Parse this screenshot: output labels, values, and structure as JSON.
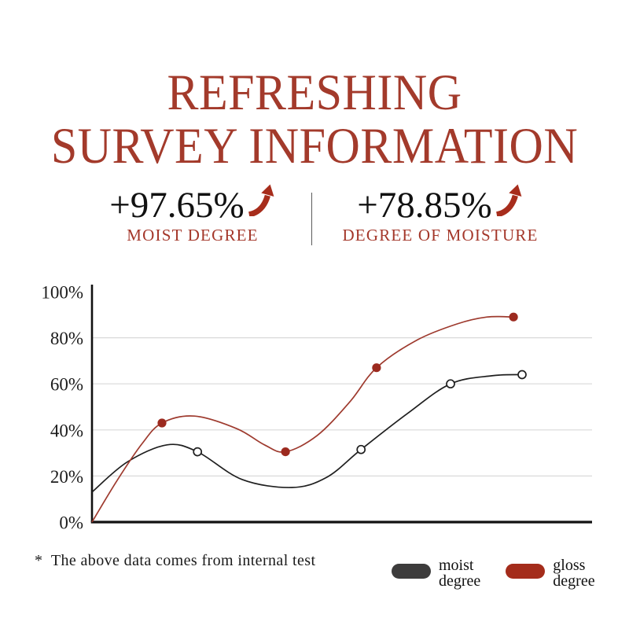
{
  "title": {
    "line1": "REFRESHING",
    "line2": "SURVEY INFORMATION"
  },
  "stats": [
    {
      "value": "+97.65%",
      "label": "MOIST DEGREE"
    },
    {
      "value": "+78.85%",
      "label": "DEGREE OF MOISTURE"
    }
  ],
  "footnote": "*  The above data comes from internal test",
  "legend": [
    {
      "line1": "moist",
      "line2": "degree",
      "color": "#3d3c3c"
    },
    {
      "line1": "gloss",
      "line2": "degree",
      "color": "#a42c1b"
    }
  ],
  "colors": {
    "accent-red": "#a33a2b",
    "stat-label-red": "#a4372a",
    "arrow-red": "#a72d1c",
    "text-dark": "#141414"
  },
  "icons": {
    "stat_arrow": "up-trend-arrow"
  },
  "chart_data": {
    "type": "line",
    "title": "",
    "xlabel": "",
    "ylabel": "",
    "ylim": [
      0,
      100
    ],
    "grid": "horizontal",
    "grid_color": "#d9d9d9",
    "axis_color": "#111111",
    "x_axis_labels": "none",
    "legend_position": "bottom-right",
    "yticks": [
      {
        "label": "0%",
        "value": 0
      },
      {
        "label": "20%",
        "value": 20
      },
      {
        "label": "40%",
        "value": 40
      },
      {
        "label": "60%",
        "value": 60
      },
      {
        "label": "80%",
        "value": 80
      },
      {
        "label": "100%",
        "value": 100
      }
    ],
    "gridlines_pct": [
      20,
      40,
      60,
      80
    ],
    "series": [
      {
        "name": "moist degree",
        "color": "#1f1f1f",
        "marker": "open",
        "start_value_pct": 13,
        "markers": [
          [
            0.211,
            30.5
          ],
          [
            0.538,
            31.5
          ],
          [
            0.717,
            60
          ],
          [
            0.86,
            64
          ]
        ],
        "curve": [
          [
            0,
            13
          ],
          [
            0.07,
            26
          ],
          [
            0.15,
            33.5
          ],
          [
            0.211,
            30.5
          ],
          [
            0.3,
            18.5
          ],
          [
            0.4,
            15
          ],
          [
            0.47,
            19.5
          ],
          [
            0.538,
            31.5
          ],
          [
            0.63,
            47
          ],
          [
            0.717,
            60
          ],
          [
            0.8,
            63.5
          ],
          [
            0.86,
            64
          ]
        ]
      },
      {
        "name": "gloss degree",
        "color": "#9e3a2e",
        "marker": "filled",
        "marker_color": "#9c2a1f",
        "start_value_pct": 0,
        "markers": [
          [
            0.14,
            43
          ],
          [
            0.387,
            30.5
          ],
          [
            0.569,
            67
          ],
          [
            0.843,
            89
          ]
        ],
        "curve": [
          [
            0,
            0
          ],
          [
            0.05,
            18
          ],
          [
            0.1,
            34
          ],
          [
            0.14,
            43
          ],
          [
            0.205,
            46
          ],
          [
            0.29,
            40.5
          ],
          [
            0.345,
            33.5
          ],
          [
            0.387,
            30.5
          ],
          [
            0.45,
            37.5
          ],
          [
            0.515,
            52
          ],
          [
            0.569,
            67
          ],
          [
            0.65,
            79
          ],
          [
            0.73,
            86
          ],
          [
            0.79,
            89
          ],
          [
            0.843,
            89
          ]
        ]
      }
    ]
  }
}
